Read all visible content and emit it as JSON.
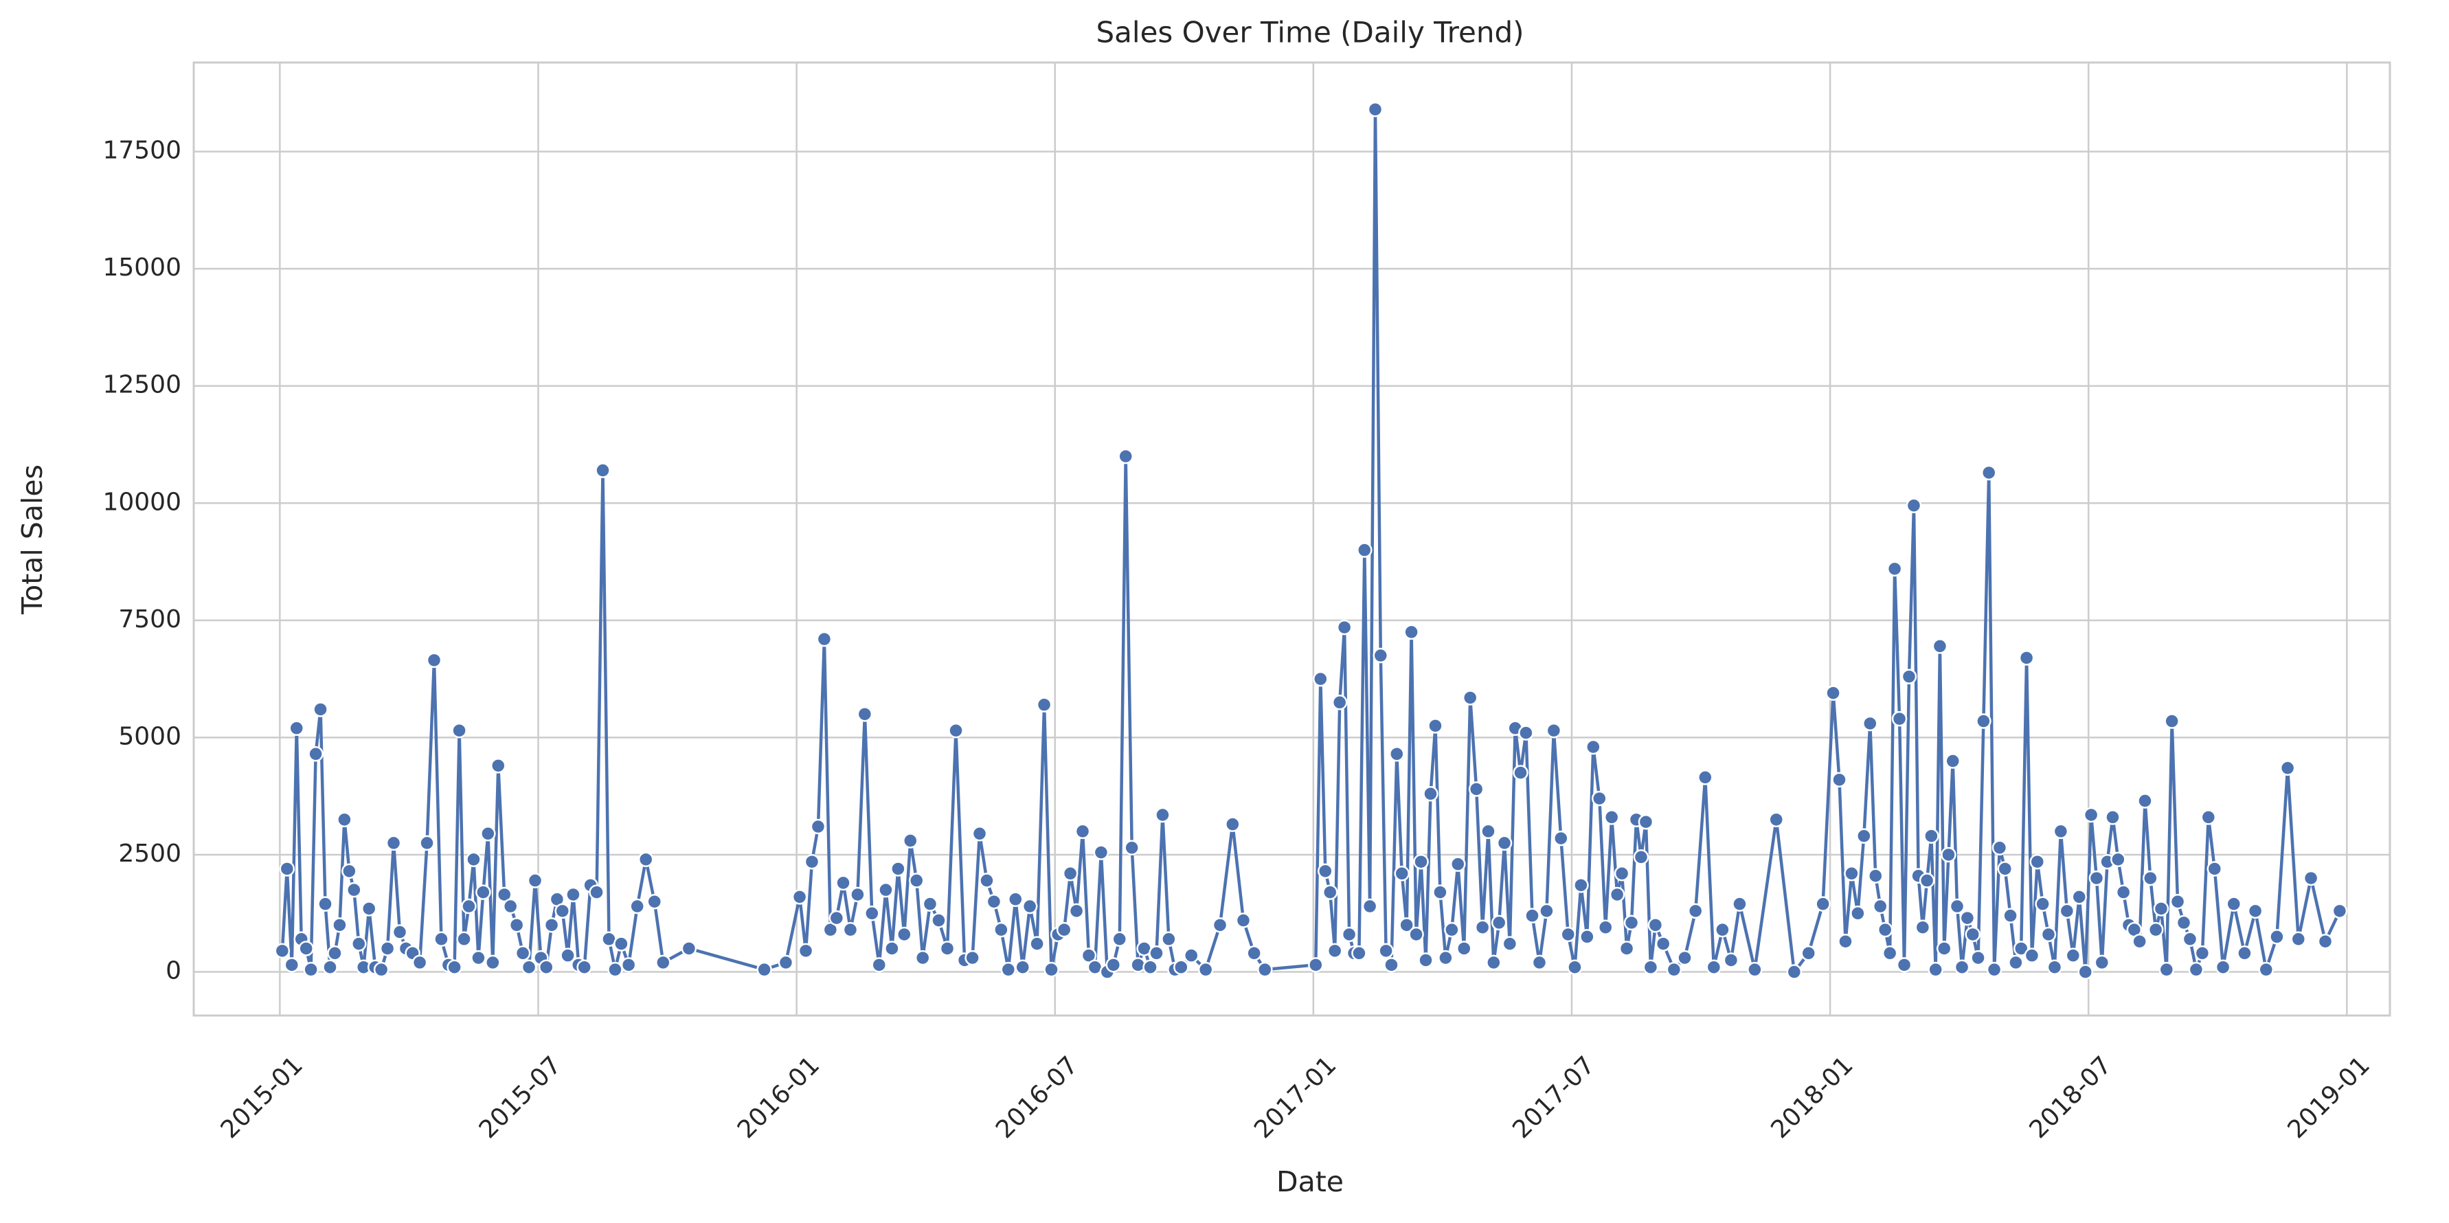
{
  "chart_data": {
    "type": "line",
    "title": "Sales Over Time (Daily Trend)",
    "x_label": "Date",
    "y_label": "Total Sales",
    "color": "#4c72b0",
    "grid": true,
    "xlim": [
      "2014-11",
      "2019-02"
    ],
    "xticks": [
      "2015-01",
      "2015-07",
      "2016-01",
      "2016-07",
      "2017-01",
      "2017-07",
      "2018-01",
      "2018-07",
      "2019-01"
    ],
    "ylim": [
      -930,
      19400
    ],
    "yticks": [
      0,
      2500,
      5000,
      7500,
      10000,
      12500,
      15000,
      17500
    ],
    "x": [
      "2015-01",
      "2015-01",
      "2015-01",
      "2015-01",
      "2015-01",
      "2015-01",
      "2015-01",
      "2015-01",
      "2015-01",
      "2015-02",
      "2015-02",
      "2015-02",
      "2015-02",
      "2015-02",
      "2015-02",
      "2015-02",
      "2015-02",
      "2015-02",
      "2015-03",
      "2015-03",
      "2015-03",
      "2015-03",
      "2015-03",
      "2015-03",
      "2015-03",
      "2015-04",
      "2015-04",
      "2015-04",
      "2015-04",
      "2015-04",
      "2015-04",
      "2015-05",
      "2015-05",
      "2015-05",
      "2015-05",
      "2015-05",
      "2015-05",
      "2015-05",
      "2015-05",
      "2015-05",
      "2015-06",
      "2015-06",
      "2015-06",
      "2015-06",
      "2015-06",
      "2015-06",
      "2015-06",
      "2015-07",
      "2015-07",
      "2015-07",
      "2015-07",
      "2015-07",
      "2015-07",
      "2015-07",
      "2015-07",
      "2015-08",
      "2015-08",
      "2015-08",
      "2015-08",
      "2015-08",
      "2015-08",
      "2015-08",
      "2015-09",
      "2015-09",
      "2015-09",
      "2015-09",
      "2015-09",
      "2015-10",
      "2015-12",
      "2015-12",
      "2016-01",
      "2016-01",
      "2016-01",
      "2016-01",
      "2016-01",
      "2016-01",
      "2016-01",
      "2016-02",
      "2016-02",
      "2016-02",
      "2016-02",
      "2016-02",
      "2016-02",
      "2016-03",
      "2016-03",
      "2016-03",
      "2016-03",
      "2016-03",
      "2016-03",
      "2016-03",
      "2016-04",
      "2016-04",
      "2016-04",
      "2016-04",
      "2016-04",
      "2016-05",
      "2016-05",
      "2016-05",
      "2016-05",
      "2016-05",
      "2016-05",
      "2016-06",
      "2016-06",
      "2016-06",
      "2016-06",
      "2016-06",
      "2016-06",
      "2016-07",
      "2016-07",
      "2016-07",
      "2016-07",
      "2016-07",
      "2016-07",
      "2016-07",
      "2016-08",
      "2016-08",
      "2016-08",
      "2016-08",
      "2016-08",
      "2016-08",
      "2016-08",
      "2016-09",
      "2016-09",
      "2016-09",
      "2016-09",
      "2016-09",
      "2016-09",
      "2016-09",
      "2016-10",
      "2016-10",
      "2016-10",
      "2016-11",
      "2016-11",
      "2016-11",
      "2016-11",
      "2017-01",
      "2017-01",
      "2017-01",
      "2017-01",
      "2017-01",
      "2017-01",
      "2017-01",
      "2017-01",
      "2017-01",
      "2017-02",
      "2017-02",
      "2017-02",
      "2017-02",
      "2017-02",
      "2017-02",
      "2017-02",
      "2017-02",
      "2017-03",
      "2017-03",
      "2017-03",
      "2017-03",
      "2017-03",
      "2017-03",
      "2017-03",
      "2017-03",
      "2017-03",
      "2017-04",
      "2017-04",
      "2017-04",
      "2017-04",
      "2017-04",
      "2017-04",
      "2017-04",
      "2017-05",
      "2017-05",
      "2017-05",
      "2017-05",
      "2017-05",
      "2017-05",
      "2017-05",
      "2017-05",
      "2017-06",
      "2017-06",
      "2017-06",
      "2017-06",
      "2017-06",
      "2017-06",
      "2017-07",
      "2017-07",
      "2017-07",
      "2017-07",
      "2017-07",
      "2017-07",
      "2017-07",
      "2017-08",
      "2017-08",
      "2017-08",
      "2017-08",
      "2017-08",
      "2017-08",
      "2017-08",
      "2017-08",
      "2017-08",
      "2017-09",
      "2017-09",
      "2017-09",
      "2017-09",
      "2017-10",
      "2017-10",
      "2017-10",
      "2017-10",
      "2017-10",
      "2017-11",
      "2017-11",
      "2017-12",
      "2017-12",
      "2017-12",
      "2018-01",
      "2018-01",
      "2018-01",
      "2018-01",
      "2018-01",
      "2018-01",
      "2018-01",
      "2018-02",
      "2018-02",
      "2018-02",
      "2018-02",
      "2018-02",
      "2018-02",
      "2018-02",
      "2018-02",
      "2018-02",
      "2018-03",
      "2018-03",
      "2018-03",
      "2018-03",
      "2018-03",
      "2018-03",
      "2018-03",
      "2018-03",
      "2018-03",
      "2018-03",
      "2018-04",
      "2018-04",
      "2018-04",
      "2018-04",
      "2018-04",
      "2018-04",
      "2018-04",
      "2018-04",
      "2018-05",
      "2018-05",
      "2018-05",
      "2018-05",
      "2018-05",
      "2018-05",
      "2018-05",
      "2018-05",
      "2018-06",
      "2018-06",
      "2018-06",
      "2018-06",
      "2018-06",
      "2018-06",
      "2018-06",
      "2018-07",
      "2018-07",
      "2018-07",
      "2018-07",
      "2018-07",
      "2018-07",
      "2018-07",
      "2018-07",
      "2018-08",
      "2018-08",
      "2018-08",
      "2018-08",
      "2018-08",
      "2018-08",
      "2018-08",
      "2018-08",
      "2018-09",
      "2018-09",
      "2018-09",
      "2018-09",
      "2018-09",
      "2018-09",
      "2018-09",
      "2018-10",
      "2018-10",
      "2018-10",
      "2018-10",
      "2018-11",
      "2018-11",
      "2018-11",
      "2018-11",
      "2018-12",
      "2018-12",
      "2018-12"
    ],
    "values": [
      450,
      2200,
      150,
      5200,
      700,
      500,
      50,
      4650,
      5600,
      1450,
      100,
      400,
      1000,
      3250,
      2150,
      1750,
      600,
      100,
      1350,
      100,
      50,
      500,
      2750,
      850,
      500,
      400,
      200,
      2750,
      6650,
      700,
      150,
      100,
      5150,
      700,
      1400,
      2400,
      300,
      1700,
      2950,
      200,
      4400,
      1650,
      1400,
      1000,
      400,
      100,
      1950,
      300,
      100,
      1000,
      1550,
      1300,
      350,
      1650,
      150,
      100,
      1850,
      1700,
      10700,
      700,
      50,
      600,
      150,
      1400,
      2400,
      1500,
      200,
      500,
      50,
      200,
      1600,
      450,
      2350,
      3100,
      7100,
      900,
      1150,
      1900,
      900,
      1650,
      5500,
      1250,
      150,
      1750,
      500,
      2200,
      800,
      2800,
      1950,
      300,
      1450,
      1100,
      500,
      5150,
      250,
      300,
      2950,
      1950,
      1500,
      900,
      50,
      1550,
      100,
      1400,
      600,
      5700,
      50,
      800,
      900,
      2100,
      1300,
      3000,
      350,
      100,
      2550,
      0,
      150,
      700,
      11000,
      2650,
      150,
      500,
      100,
      400,
      3350,
      700,
      50,
      100,
      350,
      50,
      1000,
      3150,
      1100,
      400,
      50,
      150,
      6250,
      2150,
      1700,
      450,
      5750,
      7350,
      800,
      400,
      400,
      9000,
      1400,
      18400,
      6750,
      450,
      150,
      4650,
      2100,
      1000,
      7250,
      800,
      2350,
      250,
      3800,
      5250,
      1700,
      300,
      900,
      2300,
      500,
      5850,
      3900,
      950,
      3000,
      200,
      1050,
      2750,
      600,
      5200,
      4250,
      5100,
      1200,
      200,
      1300,
      5150,
      2850,
      800,
      100,
      1850,
      750,
      4800,
      3700,
      950,
      3300,
      1650,
      2100,
      500,
      1050,
      3250,
      2450,
      3200,
      100,
      1000,
      600,
      50,
      300,
      1300,
      4150,
      100,
      900,
      250,
      1450,
      50,
      3250,
      0,
      400,
      1450,
      5950,
      4100,
      650,
      2100,
      1250,
      2900,
      5300,
      2050,
      1400,
      900,
      400,
      8600,
      5400,
      150,
      6300,
      9950,
      2050,
      950,
      1950,
      2900,
      50,
      6950,
      500,
      2500,
      4500,
      1400,
      100,
      1150,
      800,
      300,
      5350,
      10650,
      50,
      2650,
      2200,
      1200,
      200,
      500,
      6700,
      350,
      2350,
      1450,
      800,
      100,
      3000,
      1300,
      350,
      1600,
      0,
      3350,
      2000,
      200,
      2350,
      3300,
      2400,
      1700,
      1000,
      900,
      650,
      3650,
      2000,
      900,
      1350,
      50,
      5350,
      1500,
      1050,
      700,
      50,
      400,
      3300,
      2200,
      100,
      1450,
      400,
      1300,
      50,
      750,
      4350,
      700,
      2000,
      650,
      1300
    ]
  }
}
